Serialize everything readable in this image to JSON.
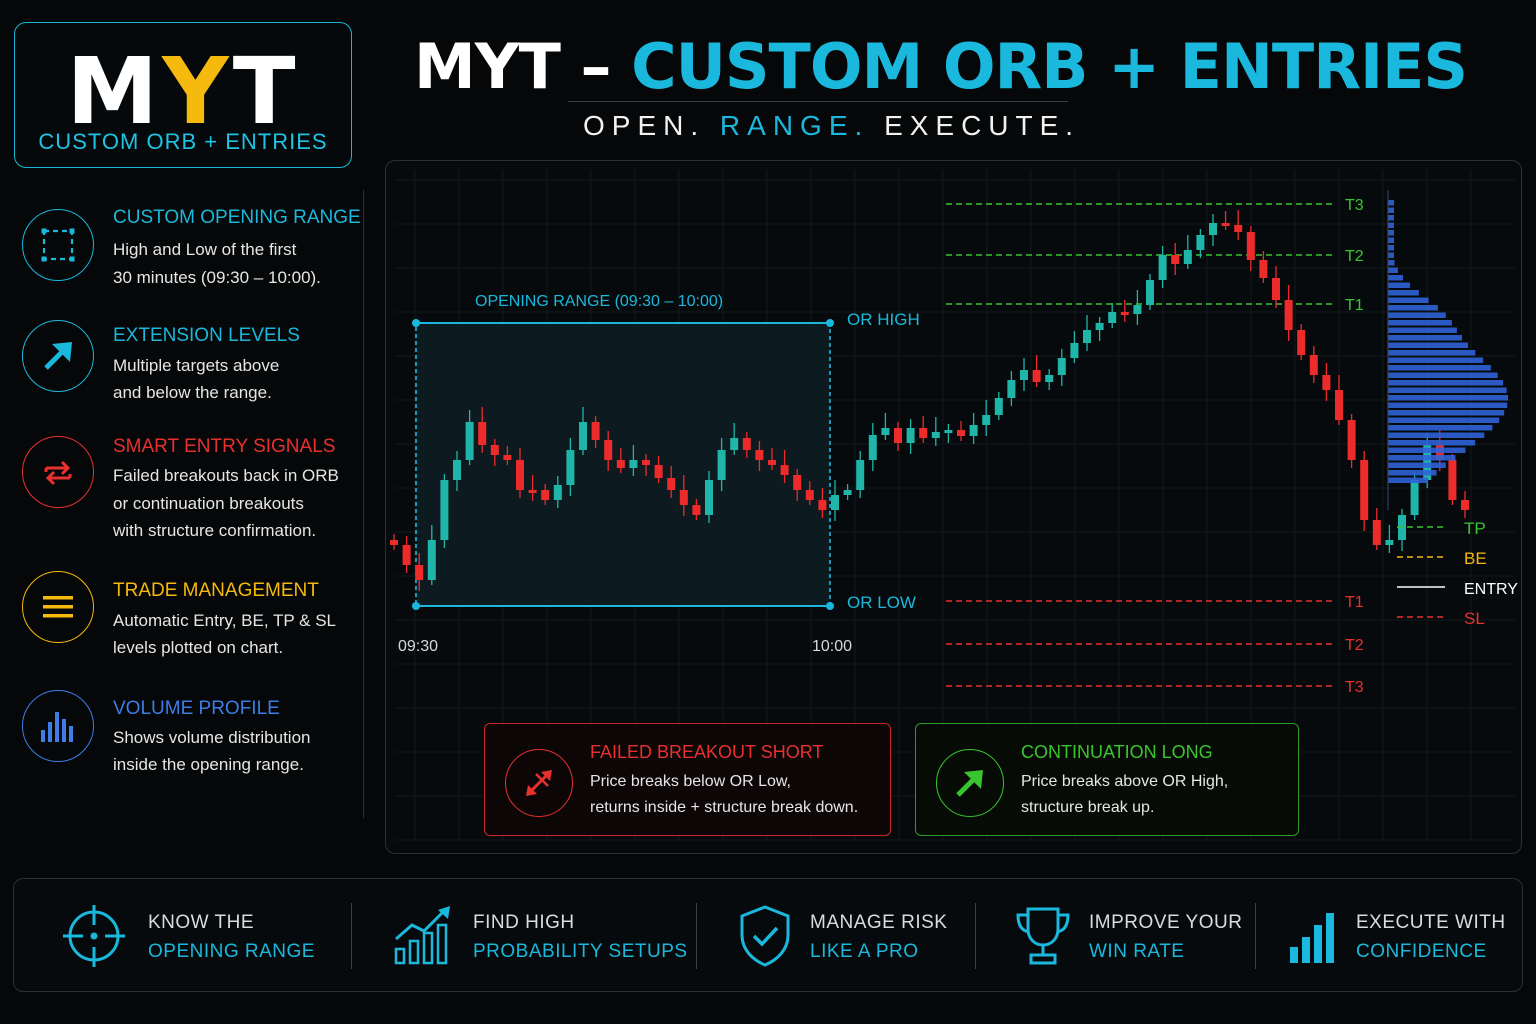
{
  "logo": {
    "letters": [
      "M",
      "Y",
      "T"
    ],
    "subtitle": "CUSTOM ORB + ENTRIES"
  },
  "header": {
    "title_prefix": "MYT – ",
    "title_highlight": "CUSTOM ORB + ENTRIES",
    "tagline": [
      "OPEN.",
      "RANGE.",
      "EXECUTE."
    ]
  },
  "features": [
    {
      "title": "CUSTOM OPENING RANGE",
      "lines": [
        "High and Low of the first",
        "30 minutes (09:30 – 10:00)."
      ],
      "icon": "dashed-square-icon",
      "color": "#1ab8dc"
    },
    {
      "title": "EXTENSION LEVELS",
      "lines": [
        "Multiple targets above",
        "and below the range."
      ],
      "icon": "arrow-up-right-icon",
      "color": "#1ab8dc"
    },
    {
      "title": "SMART ENTRY SIGNALS",
      "lines": [
        "Failed breakouts back in ORB",
        "or continuation breakouts",
        "with structure confirmation."
      ],
      "icon": "swap-arrows-icon",
      "color": "#e8302f"
    },
    {
      "title": "TRADE MANAGEMENT",
      "lines": [
        "Automatic Entry, BE, TP & SL",
        "levels plotted on chart."
      ],
      "icon": "menu-lines-icon",
      "color": "#f6b90d"
    },
    {
      "title": "VOLUME PROFILE",
      "lines": [
        "Shows volume distribution",
        "inside the opening range."
      ],
      "icon": "volume-bars-icon",
      "color": "#3d7ee6"
    }
  ],
  "chart": {
    "range_label": "OPENING RANGE (09:30 – 10:00)",
    "or_high_label": "OR HIGH",
    "or_low_label": "OR LOW",
    "time_start": "09:30",
    "time_end": "10:00",
    "upper_targets": [
      "T3",
      "T2",
      "T1"
    ],
    "lower_targets": [
      "T1",
      "T2",
      "T3"
    ],
    "legend": [
      {
        "label": "TP",
        "color": "#39c52e"
      },
      {
        "label": "BE",
        "color": "#f6b90d"
      },
      {
        "label": "ENTRY",
        "color": "#ffffff"
      },
      {
        "label": "SL",
        "color": "#e8302f"
      }
    ],
    "bull_color": "#1fb5a8",
    "bear_color": "#ee2b2b"
  },
  "cards": [
    {
      "title": "FAILED BREAKOUT SHORT",
      "lines": [
        "Price breaks below OR Low,",
        "returns inside + structure break down."
      ],
      "icon": "diagonal-arrows-icon",
      "color": "#e8302f"
    },
    {
      "title": "CONTINUATION LONG",
      "lines": [
        "Price breaks above OR High,",
        "structure break up."
      ],
      "icon": "arrow-up-right-icon",
      "color": "#39c52e"
    }
  ],
  "benefits": [
    {
      "line1": "KNOW THE",
      "line2": "OPENING RANGE",
      "icon": "crosshair-icon"
    },
    {
      "line1": "FIND HIGH",
      "line2": "PROBABILITY SETUPS",
      "icon": "growth-chart-icon"
    },
    {
      "line1": "MANAGE RISK",
      "line2": "LIKE A PRO",
      "icon": "shield-check-icon"
    },
    {
      "line1": "IMPROVE YOUR",
      "line2": "WIN RATE",
      "icon": "trophy-icon"
    },
    {
      "line1": "EXECUTE WITH",
      "line2": "CONFIDENCE",
      "icon": "signal-bars-icon"
    }
  ]
}
